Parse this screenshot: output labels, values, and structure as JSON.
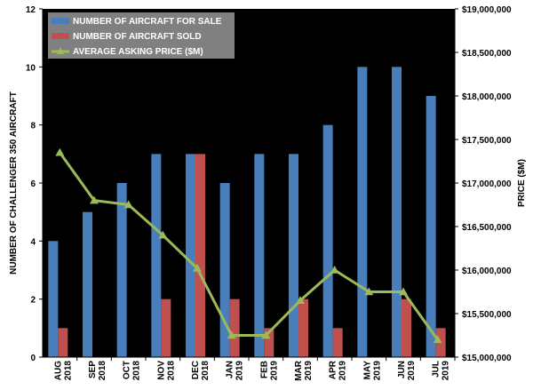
{
  "chart_data": {
    "type": "bar",
    "categories": [
      {
        "month": "AUG",
        "year": "2018"
      },
      {
        "month": "SEP",
        "year": "2018"
      },
      {
        "month": "OCT",
        "year": "2018"
      },
      {
        "month": "NOV",
        "year": "2018"
      },
      {
        "month": "DEC",
        "year": "2018"
      },
      {
        "month": "JAN",
        "year": "2019"
      },
      {
        "month": "FEB",
        "year": "2019"
      },
      {
        "month": "MAR",
        "year": "2019"
      },
      {
        "month": "APR",
        "year": "2019"
      },
      {
        "month": "MAY",
        "year": "2019"
      },
      {
        "month": "JUN",
        "year": "2019"
      },
      {
        "month": "JUL",
        "year": "2019"
      }
    ],
    "series": [
      {
        "name": "NUMBER OF AIRCRAFT FOR SALE",
        "type": "bar",
        "axis": "left",
        "color": "#4a7ebb",
        "values": [
          4,
          5,
          6,
          7,
          7,
          6,
          7,
          7,
          8,
          10,
          10,
          9
        ]
      },
      {
        "name": "NUMBER OF AIRCRAFT SOLD",
        "type": "bar",
        "axis": "left",
        "color": "#c0504d",
        "values": [
          1,
          0,
          0,
          2,
          7,
          2,
          1,
          2,
          1,
          0,
          2,
          1
        ]
      },
      {
        "name": "AVERAGE ASKING PRICE ($M)",
        "type": "line",
        "axis": "right",
        "color": "#9bbb59",
        "values": [
          17350000,
          16800000,
          16750000,
          16400000,
          16020000,
          15250000,
          15250000,
          15650000,
          16000000,
          15750000,
          15750000,
          15200000
        ]
      }
    ],
    "ylabel": "NUMBER OF CHALLENGER 350 AIRCRAFT",
    "y2label": "PRICE ($M)",
    "ylim": [
      0,
      12
    ],
    "yticks": [
      "0",
      "2",
      "4",
      "6",
      "8",
      "10",
      "12"
    ],
    "y2lim": [
      15000000,
      19000000
    ],
    "y2ticks": [
      "$15,000,000",
      "$15,500,000",
      "$16,000,000",
      "$16,500,000",
      "$17,000,000",
      "$17,500,000",
      "$18,000,000",
      "$18,500,000",
      "$19,000,000"
    ],
    "plot_background": "#000000",
    "grid": false,
    "legend_position": "top-left"
  }
}
